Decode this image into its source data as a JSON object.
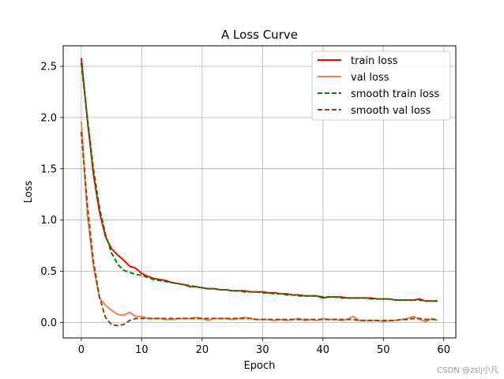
{
  "chart_data": {
    "type": "line",
    "title": "A Loss Curve",
    "xlabel": "Epoch",
    "ylabel": "Loss",
    "xlim": [
      -3,
      62
    ],
    "ylim": [
      -0.15,
      2.7
    ],
    "xticks": [
      0,
      10,
      20,
      30,
      40,
      50,
      60
    ],
    "yticks": [
      0.0,
      0.5,
      1.0,
      1.5,
      2.0,
      2.5
    ],
    "xtick_labels": [
      "0",
      "10",
      "20",
      "30",
      "40",
      "50",
      "60"
    ],
    "ytick_labels": [
      "0.0",
      "0.5",
      "1.0",
      "1.5",
      "2.0",
      "2.5"
    ],
    "grid": true,
    "legend_position": "top-right",
    "series": [
      {
        "name": "train loss",
        "color": "#ff0000",
        "style": "solid",
        "values": [
          2.58,
          1.98,
          1.45,
          1.08,
          0.84,
          0.72,
          0.66,
          0.61,
          0.55,
          0.53,
          0.48,
          0.45,
          0.43,
          0.42,
          0.41,
          0.39,
          0.38,
          0.37,
          0.35,
          0.35,
          0.34,
          0.33,
          0.33,
          0.32,
          0.32,
          0.31,
          0.31,
          0.31,
          0.3,
          0.3,
          0.3,
          0.29,
          0.29,
          0.28,
          0.28,
          0.27,
          0.27,
          0.26,
          0.26,
          0.26,
          0.24,
          0.25,
          0.25,
          0.25,
          0.24,
          0.24,
          0.24,
          0.24,
          0.24,
          0.23,
          0.23,
          0.23,
          0.22,
          0.22,
          0.22,
          0.22,
          0.23,
          0.21,
          0.21,
          0.21
        ]
      },
      {
        "name": "val loss",
        "color": "#f08050",
        "style": "solid",
        "values": [
          1.96,
          1.05,
          0.55,
          0.24,
          0.17,
          0.12,
          0.08,
          0.07,
          0.1,
          0.06,
          0.06,
          0.04,
          0.04,
          0.04,
          0.03,
          0.03,
          0.04,
          0.04,
          0.04,
          0.05,
          0.04,
          0.02,
          0.04,
          0.04,
          0.04,
          0.03,
          0.04,
          0.05,
          0.04,
          0.03,
          0.03,
          0.03,
          0.02,
          0.03,
          0.02,
          0.03,
          0.04,
          0.02,
          0.03,
          0.02,
          0.04,
          0.03,
          0.03,
          0.02,
          0.03,
          0.06,
          0.02,
          0.02,
          0.02,
          0.02,
          0.01,
          0.02,
          0.02,
          0.03,
          0.04,
          0.06,
          0.03,
          0.01,
          0.04,
          0.02
        ]
      },
      {
        "name": "smooth train loss",
        "color": "#008000",
        "style": "dashed",
        "values": [
          2.53,
          2.0,
          1.5,
          1.12,
          0.86,
          0.68,
          0.57,
          0.51,
          0.49,
          0.47,
          0.46,
          0.44,
          0.42,
          0.41,
          0.4,
          0.39,
          0.38,
          0.37,
          0.36,
          0.35,
          0.34,
          0.33,
          0.33,
          0.32,
          0.32,
          0.31,
          0.31,
          0.3,
          0.3,
          0.3,
          0.29,
          0.29,
          0.28,
          0.28,
          0.27,
          0.27,
          0.26,
          0.26,
          0.26,
          0.26,
          0.25,
          0.25,
          0.25,
          0.24,
          0.24,
          0.24,
          0.24,
          0.24,
          0.23,
          0.23,
          0.23,
          0.23,
          0.22,
          0.22,
          0.22,
          0.22,
          0.22,
          0.21,
          0.21,
          0.21
        ]
      },
      {
        "name": "smooth val loss",
        "color": "#8b4513",
        "style": "dashed",
        "values": [
          1.86,
          1.15,
          0.6,
          0.25,
          0.05,
          -0.02,
          -0.03,
          -0.02,
          0.02,
          0.04,
          0.04,
          0.04,
          0.04,
          0.04,
          0.04,
          0.04,
          0.04,
          0.04,
          0.04,
          0.04,
          0.04,
          0.04,
          0.04,
          0.04,
          0.04,
          0.04,
          0.04,
          0.04,
          0.04,
          0.03,
          0.03,
          0.03,
          0.03,
          0.03,
          0.03,
          0.03,
          0.03,
          0.03,
          0.03,
          0.03,
          0.03,
          0.03,
          0.03,
          0.03,
          0.03,
          0.03,
          0.02,
          0.02,
          0.02,
          0.02,
          0.02,
          0.02,
          0.02,
          0.03,
          0.03,
          0.04,
          0.04,
          0.03,
          0.03,
          0.03
        ]
      }
    ]
  },
  "watermark": "CSDN @zslj小凡"
}
